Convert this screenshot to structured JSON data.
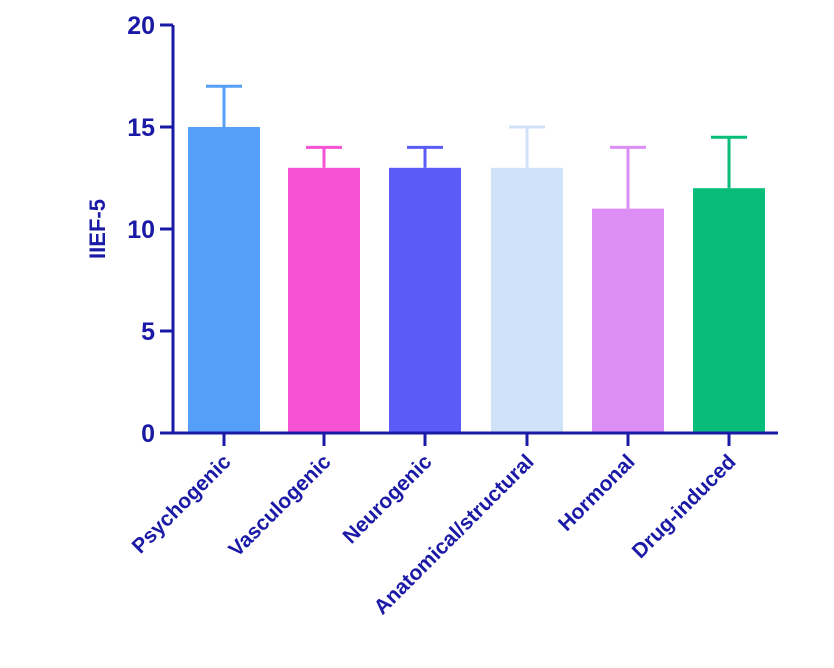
{
  "chart_data": {
    "type": "bar",
    "title": "",
    "xlabel": "",
    "ylabel": "IIEF-5",
    "ylim": [
      0,
      20
    ],
    "yticks": [
      0,
      5,
      10,
      15,
      20
    ],
    "grid": false,
    "categories": [
      "Psychogenic",
      "Vasculogenic",
      "Neurogenic",
      "Anatomical/structural",
      "Hormonal",
      "Drug-induced"
    ],
    "values": [
      15,
      13,
      13,
      13,
      11,
      12
    ],
    "error_upper": [
      17,
      14,
      14,
      15,
      14,
      14.5
    ],
    "colors": [
      "#569ff8",
      "#f552d4",
      "#5b5bf7",
      "#cfe2f8",
      "#dc8ef5",
      "#08bd7a"
    ],
    "axis_color": "#1a1aa6"
  }
}
